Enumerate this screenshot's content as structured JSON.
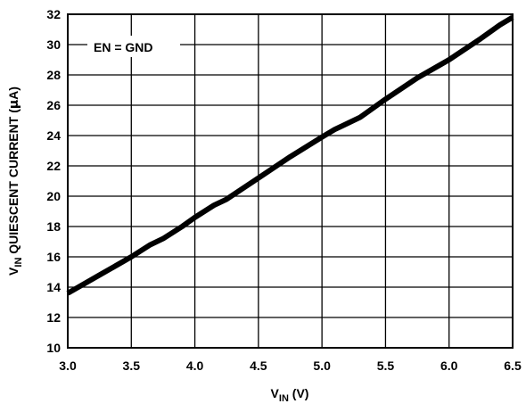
{
  "chart_data": {
    "type": "line",
    "title": "",
    "xlabel": {
      "main": "V",
      "sub": "IN",
      "rest": " (V)"
    },
    "ylabel": {
      "main": "V",
      "sub": "IN",
      "rest": " QUIESCENT CURRENT (",
      "greek": "µ",
      "unit": "A)"
    },
    "xlim": [
      3.0,
      6.5
    ],
    "ylim": [
      10,
      32
    ],
    "xticks": [
      3.0,
      3.5,
      4.0,
      4.5,
      5.0,
      5.5,
      6.0,
      6.5
    ],
    "xtick_labels": [
      "3.0",
      "3.5",
      "4.0",
      "4.5",
      "5.0",
      "5.5",
      "6.0",
      "6.5"
    ],
    "yticks": [
      10,
      12,
      14,
      16,
      18,
      20,
      22,
      24,
      26,
      28,
      30,
      32
    ],
    "ytick_labels": [
      "10",
      "12",
      "14",
      "16",
      "18",
      "20",
      "22",
      "24",
      "26",
      "28",
      "30",
      "32"
    ],
    "grid": true,
    "annotation": "EN = GND",
    "series": [
      {
        "color": "#000000",
        "x": [
          3.0,
          3.25,
          3.5,
          3.65,
          3.75,
          3.9,
          4.0,
          4.15,
          4.25,
          4.5,
          4.75,
          5.0,
          5.1,
          5.3,
          5.5,
          5.75,
          6.0,
          6.25,
          6.4,
          6.5
        ],
        "y": [
          13.6,
          14.8,
          16.0,
          16.8,
          17.2,
          18.0,
          18.6,
          19.4,
          19.8,
          21.2,
          22.6,
          23.9,
          24.4,
          25.2,
          26.4,
          27.8,
          29.0,
          30.4,
          31.3,
          31.8
        ]
      }
    ]
  }
}
